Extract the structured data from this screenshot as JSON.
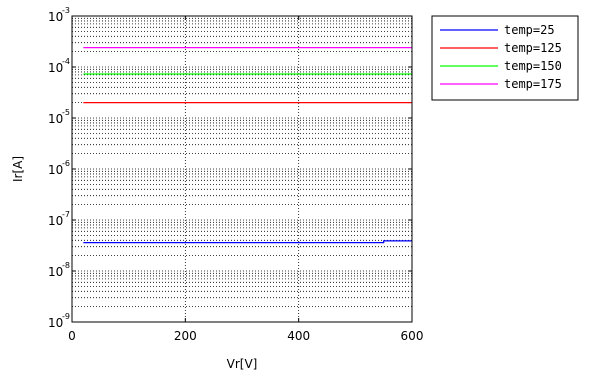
{
  "chart_data": {
    "type": "line",
    "xlabel": "Vr[V]",
    "ylabel": "Ir[A]",
    "xlim": [
      0,
      600
    ],
    "ylim": [
      1e-09,
      0.001
    ],
    "yscale": "log",
    "grid": true,
    "legend_placement": "outside-top-right",
    "x_ticks": [
      {
        "value": 0,
        "label": "0"
      },
      {
        "value": 200,
        "label": "200"
      },
      {
        "value": 400,
        "label": "400"
      },
      {
        "value": 600,
        "label": "600"
      }
    ],
    "y_ticks": [
      {
        "value": 1e-09,
        "base": "10",
        "exp": "-9"
      },
      {
        "value": 1e-08,
        "base": "10",
        "exp": "-8"
      },
      {
        "value": 1e-07,
        "base": "10",
        "exp": "-7"
      },
      {
        "value": 1e-06,
        "base": "10",
        "exp": "-6"
      },
      {
        "value": 1e-05,
        "base": "10",
        "exp": "-5"
      },
      {
        "value": 0.0001,
        "base": "10",
        "exp": "-4"
      },
      {
        "value": 0.001,
        "base": "10",
        "exp": "-3"
      }
    ],
    "series": [
      {
        "name": "temp=25",
        "color": "#0000ff",
        "x": [
          20,
          550,
          550,
          600
        ],
        "y": [
          3.6e-08,
          3.6e-08,
          3.9e-08,
          3.9e-08
        ]
      },
      {
        "name": "temp=125",
        "color": "#ff0000",
        "x": [
          20,
          600
        ],
        "y": [
          2e-05,
          2e-05
        ]
      },
      {
        "name": "temp=150",
        "color": "#00ff00",
        "x": [
          20,
          600
        ],
        "y": [
          7.3e-05,
          7.3e-05
        ]
      },
      {
        "name": "temp=175",
        "color": "#ff00ff",
        "x": [
          20,
          600
        ],
        "y": [
          0.00024,
          0.00024
        ]
      }
    ]
  }
}
